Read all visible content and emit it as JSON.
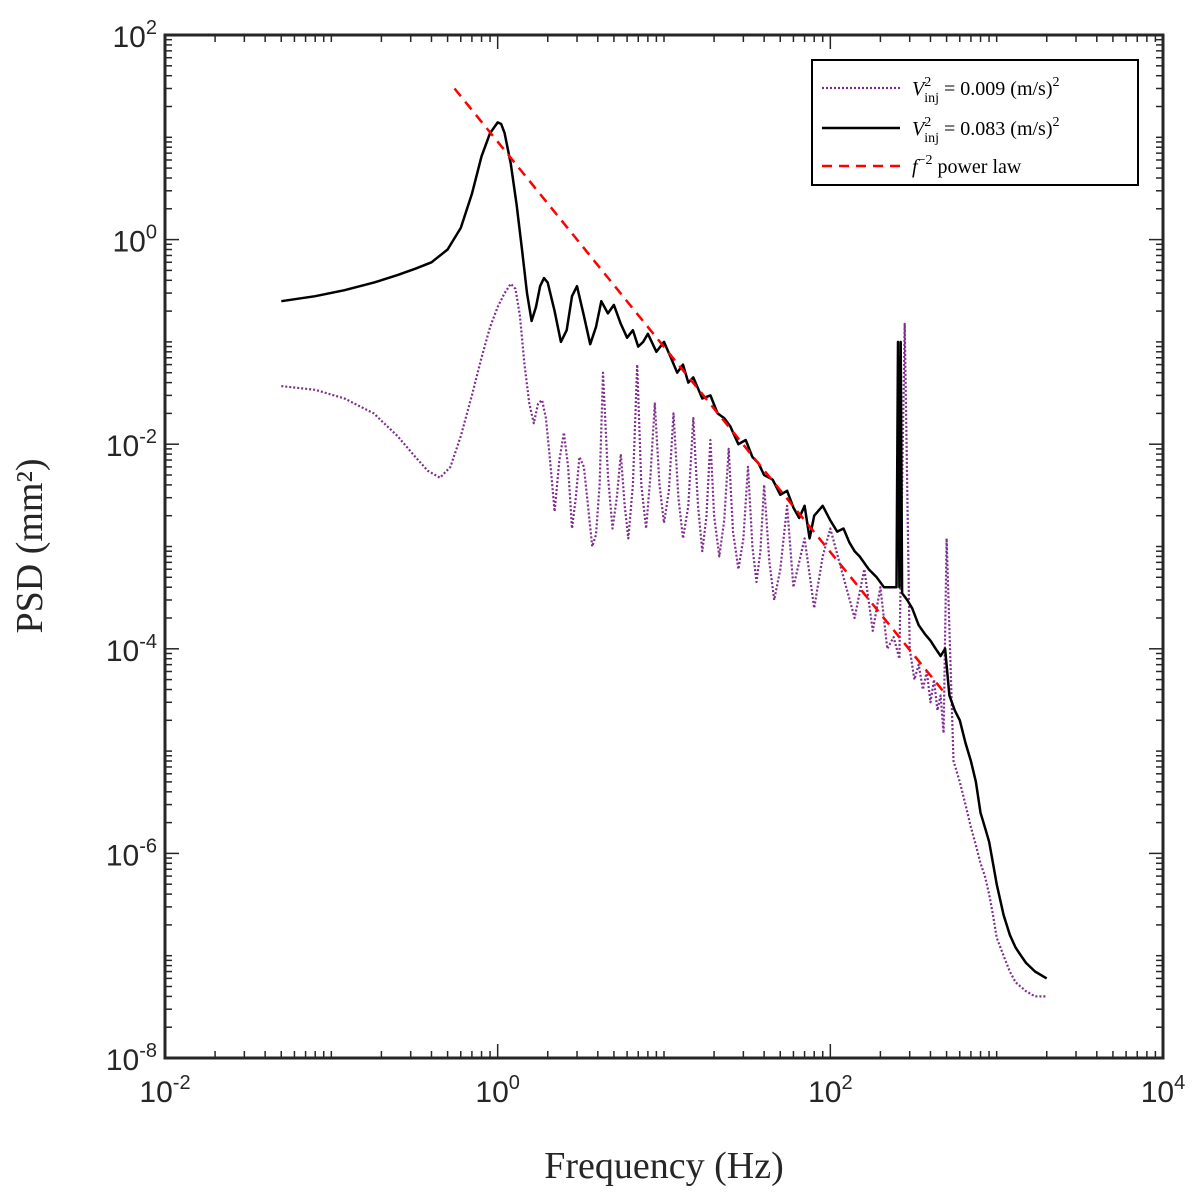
{
  "chart_data": {
    "type": "line",
    "title": "",
    "xlabel": "Frequency (Hz)",
    "ylabel": "PSD (mm²)",
    "xscale": "log",
    "yscale": "log",
    "xlim": [
      0.01,
      10000
    ],
    "ylim": [
      1e-08,
      100
    ],
    "grid": false,
    "legend_position": "top-right",
    "x_ticks": [
      {
        "value": 0.01,
        "base": "10",
        "exp": "-2"
      },
      {
        "value": 1,
        "base": "10",
        "exp": "0"
      },
      {
        "value": 100,
        "base": "10",
        "exp": "2"
      },
      {
        "value": 10000,
        "base": "10",
        "exp": "4"
      }
    ],
    "y_ticks": [
      {
        "value": 1e-08,
        "base": "10",
        "exp": "-8"
      },
      {
        "value": 1e-06,
        "base": "10",
        "exp": "-6"
      },
      {
        "value": 0.0001,
        "base": "10",
        "exp": "-4"
      },
      {
        "value": 0.01,
        "base": "10",
        "exp": "-2"
      },
      {
        "value": 1,
        "base": "10",
        "exp": "0"
      },
      {
        "value": 100,
        "base": "10",
        "exp": "2"
      }
    ],
    "series": [
      {
        "name": "V_inj^2 = 0.009 (m/s)^2",
        "legend_label": "V²inj = 0.009 (m/s)²",
        "color": "#7E2F8E",
        "style": "dotted",
        "x": [
          0.05,
          0.08,
          0.12,
          0.18,
          0.25,
          0.32,
          0.38,
          0.45,
          0.52,
          0.6,
          0.7,
          0.8,
          0.9,
          1.0,
          1.1,
          1.2,
          1.28,
          1.36,
          1.45,
          1.55,
          1.65,
          1.75,
          1.85,
          1.95,
          2.05,
          2.2,
          2.35,
          2.5,
          2.65,
          2.8,
          2.95,
          3.1,
          3.3,
          3.5,
          3.7,
          3.9,
          4.1,
          4.3,
          4.6,
          4.9,
          5.2,
          5.5,
          5.8,
          6.1,
          6.5,
          6.9,
          7.3,
          7.8,
          8.3,
          8.8,
          9.4,
          10,
          10.7,
          11.4,
          12.2,
          13,
          14,
          15,
          16,
          17,
          18,
          19,
          20,
          21.5,
          23,
          24.5,
          26,
          28,
          30,
          32,
          34,
          36,
          38,
          40,
          43,
          46,
          50,
          55,
          60,
          70,
          80,
          90,
          100,
          120,
          140,
          160,
          180,
          200,
          220,
          240,
          260,
          280,
          300,
          320,
          340,
          360,
          380,
          400,
          420,
          440,
          460,
          480,
          500,
          550,
          600,
          650,
          700,
          750,
          800,
          850,
          900,
          950,
          1000,
          1100,
          1200,
          1300,
          1500,
          1700,
          2000
        ],
        "y": [
          0.037,
          0.034,
          0.028,
          0.02,
          0.012,
          0.0075,
          0.0055,
          0.0047,
          0.006,
          0.012,
          0.03,
          0.07,
          0.14,
          0.22,
          0.3,
          0.37,
          0.33,
          0.18,
          0.06,
          0.025,
          0.016,
          0.025,
          0.027,
          0.018,
          0.008,
          0.0022,
          0.007,
          0.013,
          0.006,
          0.0015,
          0.003,
          0.0075,
          0.006,
          0.0024,
          0.001,
          0.0013,
          0.004,
          0.05,
          0.005,
          0.0015,
          0.003,
          0.008,
          0.0025,
          0.0012,
          0.004,
          0.06,
          0.004,
          0.0015,
          0.005,
          0.025,
          0.004,
          0.0017,
          0.0035,
          0.02,
          0.003,
          0.0012,
          0.0025,
          0.018,
          0.0025,
          0.0009,
          0.002,
          0.011,
          0.002,
          0.0008,
          0.0018,
          0.009,
          0.0014,
          0.0006,
          0.0012,
          0.006,
          0.001,
          0.00045,
          0.0009,
          0.004,
          0.0007,
          0.0003,
          0.0006,
          0.0025,
          0.0004,
          0.0012,
          0.00025,
          0.0008,
          0.0015,
          0.0005,
          0.0002,
          0.0006,
          0.00015,
          0.0004,
          0.0001,
          0.00013,
          8e-05,
          0.15,
          0.0001,
          5e-05,
          7e-05,
          4e-05,
          6e-05,
          3e-05,
          5e-05,
          2.5e-05,
          3.5e-05,
          1.5e-05,
          0.0012,
          8e-06,
          5e-06,
          3e-06,
          1.8e-06,
          1.2e-06,
          8e-07,
          6e-07,
          4e-07,
          2.5e-07,
          1.5e-07,
          1e-07,
          7e-08,
          5.5e-08,
          4.5e-08,
          4e-08,
          4e-08
        ]
      },
      {
        "name": "V_inj^2 = 0.083 (m/s)^2",
        "legend_label": "V²inj = 0.083 (m/s)²",
        "color": "#000000",
        "style": "solid",
        "x": [
          0.05,
          0.08,
          0.12,
          0.18,
          0.25,
          0.32,
          0.4,
          0.5,
          0.6,
          0.7,
          0.8,
          0.9,
          1.0,
          1.05,
          1.1,
          1.2,
          1.3,
          1.4,
          1.5,
          1.6,
          1.7,
          1.8,
          1.9,
          2.0,
          2.2,
          2.4,
          2.6,
          2.8,
          3.0,
          3.3,
          3.6,
          3.9,
          4.2,
          4.6,
          5.0,
          5.5,
          6.0,
          6.5,
          7.0,
          7.5,
          8.0,
          9.0,
          10,
          11,
          12,
          13,
          14,
          15,
          17,
          19,
          21,
          23,
          25,
          28,
          31,
          34,
          37,
          40,
          45,
          50,
          55,
          60,
          65,
          70,
          75,
          80,
          90,
          100,
          110,
          120,
          130,
          140,
          150,
          170,
          190,
          210,
          230,
          250,
          255,
          260,
          265,
          270,
          290,
          310,
          340,
          370,
          400,
          430,
          460,
          490,
          520,
          560,
          600,
          650,
          700,
          750,
          800,
          850,
          900,
          950,
          1000,
          1100,
          1200,
          1300,
          1400,
          1500,
          1700,
          2000
        ],
        "y": [
          0.25,
          0.28,
          0.32,
          0.38,
          0.45,
          0.52,
          0.6,
          0.8,
          1.3,
          2.8,
          6.5,
          11,
          14,
          13.5,
          11,
          5.5,
          2.2,
          0.8,
          0.3,
          0.16,
          0.22,
          0.35,
          0.42,
          0.38,
          0.2,
          0.1,
          0.13,
          0.28,
          0.35,
          0.18,
          0.095,
          0.14,
          0.25,
          0.19,
          0.23,
          0.15,
          0.11,
          0.13,
          0.09,
          0.1,
          0.12,
          0.08,
          0.1,
          0.07,
          0.05,
          0.06,
          0.04,
          0.045,
          0.028,
          0.03,
          0.02,
          0.018,
          0.015,
          0.01,
          0.011,
          0.0075,
          0.0065,
          0.005,
          0.0045,
          0.0032,
          0.0035,
          0.0024,
          0.0019,
          0.0025,
          0.0012,
          0.002,
          0.0025,
          0.0018,
          0.0014,
          0.0015,
          0.0011,
          0.0009,
          0.0008,
          0.0006,
          0.0005,
          0.0004,
          0.0004,
          0.0004,
          0.1,
          0.0004,
          0.1,
          0.00035,
          0.0003,
          0.00025,
          0.00017,
          0.00014,
          0.00012,
          0.0001,
          8.5e-05,
          0.0001,
          3.5e-05,
          2.5e-05,
          2e-05,
          1.2e-05,
          8e-06,
          5e-06,
          2.5e-06,
          1.8e-06,
          1.3e-06,
          8e-07,
          5e-07,
          2.5e-07,
          1.6e-07,
          1.2e-07,
          1e-07,
          8.5e-08,
          7e-08,
          6e-08
        ]
      },
      {
        "name": "f^-2 power law",
        "legend_label": "f⁻² power law",
        "color": "#FF0000",
        "style": "dashed",
        "x": [
          0.55,
          500
        ],
        "y": [
          30,
          3.5e-05
        ]
      }
    ]
  },
  "legend": [
    {
      "prefix": "V",
      "sup": "2",
      "sub": "inj",
      "text": " = 0.009  (m/s)",
      "post_sup": "2"
    },
    {
      "prefix": "V",
      "sup": "2",
      "sub": "inj",
      "text": " = 0.083  (m/s)",
      "post_sup": "2"
    },
    {
      "prefix": "f",
      "sup": "−2",
      "sub": "",
      "text": " power law",
      "post_sup": ""
    }
  ]
}
